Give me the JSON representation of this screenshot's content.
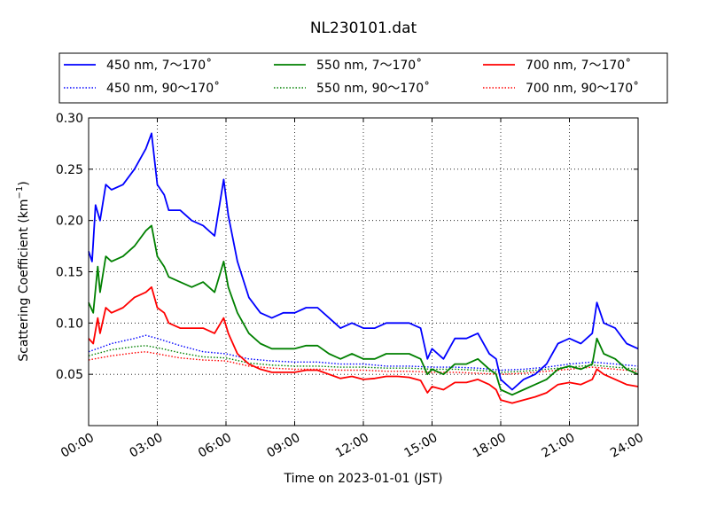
{
  "chart_data": {
    "type": "line",
    "title": "NL230101.dat",
    "xlabel": "Time on 2023-01-01 (JST)",
    "ylabel": "Scattering Coefficient (km",
    "ylabel_sup": "−1",
    "ylabel_close": ")",
    "xlim": [
      "00:00",
      "24:00"
    ],
    "ylim": [
      0.0,
      0.3
    ],
    "xticks": [
      "00:00",
      "03:00",
      "06:00",
      "09:00",
      "12:00",
      "15:00",
      "18:00",
      "21:00",
      "24:00"
    ],
    "yticks": [
      "0.05",
      "0.10",
      "0.15",
      "0.20",
      "0.25",
      "0.30"
    ],
    "grid": true,
    "legend_position": "top",
    "series": [
      {
        "name": "450 nm, 7～170˚",
        "color": "#0000ff",
        "style": "solid",
        "x": [
          0,
          0.15,
          0.3,
          0.5,
          0.75,
          1.0,
          1.5,
          2.0,
          2.5,
          2.75,
          3.0,
          3.3,
          3.5,
          4.0,
          4.5,
          5.0,
          5.5,
          5.9,
          6.1,
          6.5,
          7.0,
          7.5,
          8.0,
          8.5,
          9.0,
          9.5,
          10.0,
          10.5,
          11.0,
          11.5,
          12.0,
          12.5,
          13.0,
          13.5,
          14.0,
          14.5,
          14.8,
          15.0,
          15.5,
          16.0,
          16.5,
          17.0,
          17.5,
          17.8,
          18.0,
          18.5,
          19.0,
          19.5,
          20.0,
          20.5,
          21.0,
          21.5,
          22.0,
          22.2,
          22.5,
          23.0,
          23.5,
          24.0
        ],
        "y": [
          0.17,
          0.16,
          0.215,
          0.2,
          0.235,
          0.23,
          0.235,
          0.25,
          0.27,
          0.285,
          0.235,
          0.225,
          0.21,
          0.21,
          0.2,
          0.195,
          0.185,
          0.24,
          0.205,
          0.16,
          0.125,
          0.11,
          0.105,
          0.11,
          0.11,
          0.115,
          0.115,
          0.105,
          0.095,
          0.1,
          0.095,
          0.095,
          0.1,
          0.1,
          0.1,
          0.095,
          0.065,
          0.075,
          0.065,
          0.085,
          0.085,
          0.09,
          0.07,
          0.065,
          0.045,
          0.035,
          0.045,
          0.05,
          0.06,
          0.08,
          0.085,
          0.08,
          0.09,
          0.12,
          0.1,
          0.095,
          0.08,
          0.075
        ]
      },
      {
        "name": "550 nm, 7～170˚",
        "color": "#008000",
        "style": "solid",
        "x": [
          0,
          0.2,
          0.4,
          0.5,
          0.75,
          1.0,
          1.5,
          2.0,
          2.5,
          2.75,
          3.0,
          3.3,
          3.5,
          4.0,
          4.5,
          5.0,
          5.5,
          5.9,
          6.1,
          6.5,
          7.0,
          7.5,
          8.0,
          8.5,
          9.0,
          9.5,
          10.0,
          10.5,
          11.0,
          11.5,
          12.0,
          12.5,
          13.0,
          13.5,
          14.0,
          14.5,
          14.8,
          15.0,
          15.5,
          16.0,
          16.5,
          17.0,
          17.5,
          17.8,
          18.0,
          18.5,
          19.0,
          19.5,
          20.0,
          20.5,
          21.0,
          21.5,
          22.0,
          22.2,
          22.5,
          23.0,
          23.5,
          24.0
        ],
        "y": [
          0.12,
          0.11,
          0.155,
          0.13,
          0.165,
          0.16,
          0.165,
          0.175,
          0.19,
          0.195,
          0.165,
          0.155,
          0.145,
          0.14,
          0.135,
          0.14,
          0.13,
          0.16,
          0.135,
          0.11,
          0.09,
          0.08,
          0.075,
          0.075,
          0.075,
          0.078,
          0.078,
          0.07,
          0.065,
          0.07,
          0.065,
          0.065,
          0.07,
          0.07,
          0.07,
          0.065,
          0.05,
          0.055,
          0.05,
          0.06,
          0.06,
          0.065,
          0.055,
          0.05,
          0.035,
          0.03,
          0.035,
          0.04,
          0.045,
          0.055,
          0.058,
          0.055,
          0.06,
          0.085,
          0.07,
          0.065,
          0.055,
          0.05
        ]
      },
      {
        "name": "700 nm, 7～170˚",
        "color": "#ff0000",
        "style": "solid",
        "x": [
          0,
          0.2,
          0.4,
          0.5,
          0.75,
          1.0,
          1.5,
          2.0,
          2.5,
          2.75,
          3.0,
          3.3,
          3.5,
          4.0,
          4.5,
          5.0,
          5.5,
          5.9,
          6.1,
          6.5,
          7.0,
          7.5,
          8.0,
          8.5,
          9.0,
          9.5,
          10.0,
          10.5,
          11.0,
          11.5,
          12.0,
          12.5,
          13.0,
          13.5,
          14.0,
          14.5,
          14.8,
          15.0,
          15.5,
          16.0,
          16.5,
          17.0,
          17.5,
          17.8,
          18.0,
          18.5,
          19.0,
          19.5,
          20.0,
          20.5,
          21.0,
          21.5,
          22.0,
          22.2,
          22.5,
          23.0,
          23.5,
          24.0
        ],
        "y": [
          0.085,
          0.08,
          0.105,
          0.09,
          0.115,
          0.11,
          0.115,
          0.125,
          0.13,
          0.135,
          0.115,
          0.11,
          0.1,
          0.095,
          0.095,
          0.095,
          0.09,
          0.105,
          0.09,
          0.07,
          0.06,
          0.055,
          0.052,
          0.052,
          0.052,
          0.054,
          0.054,
          0.05,
          0.046,
          0.048,
          0.045,
          0.046,
          0.048,
          0.048,
          0.047,
          0.044,
          0.032,
          0.038,
          0.035,
          0.042,
          0.042,
          0.045,
          0.04,
          0.035,
          0.025,
          0.022,
          0.025,
          0.028,
          0.032,
          0.04,
          0.042,
          0.04,
          0.045,
          0.055,
          0.05,
          0.045,
          0.04,
          0.038
        ]
      },
      {
        "name": "450 nm, 90～170˚",
        "color": "#0000ff",
        "style": "dotted",
        "x": [
          0,
          1,
          2,
          2.5,
          3,
          4,
          5,
          6,
          7,
          8,
          9,
          10,
          11,
          12,
          13,
          14,
          15,
          16,
          17,
          18,
          19,
          20,
          21,
          22,
          23,
          24
        ],
        "y": [
          0.072,
          0.08,
          0.085,
          0.088,
          0.085,
          0.078,
          0.072,
          0.07,
          0.065,
          0.063,
          0.062,
          0.062,
          0.06,
          0.06,
          0.058,
          0.058,
          0.057,
          0.057,
          0.056,
          0.054,
          0.055,
          0.057,
          0.06,
          0.062,
          0.06,
          0.058
        ]
      },
      {
        "name": "550 nm, 90～170˚",
        "color": "#008000",
        "style": "dotted",
        "x": [
          0,
          1,
          2,
          2.5,
          3,
          4,
          5,
          6,
          7,
          8,
          9,
          10,
          11,
          12,
          13,
          14,
          15,
          16,
          17,
          18,
          19,
          20,
          21,
          22,
          23,
          24
        ],
        "y": [
          0.068,
          0.074,
          0.077,
          0.078,
          0.076,
          0.071,
          0.067,
          0.066,
          0.061,
          0.059,
          0.058,
          0.058,
          0.057,
          0.057,
          0.056,
          0.056,
          0.055,
          0.055,
          0.054,
          0.052,
          0.053,
          0.055,
          0.057,
          0.059,
          0.057,
          0.055
        ]
      },
      {
        "name": "700 nm, 90～170˚",
        "color": "#ff0000",
        "style": "dotted",
        "x": [
          0,
          1,
          2,
          2.5,
          3,
          4,
          5,
          6,
          7,
          8,
          9,
          10,
          11,
          12,
          13,
          14,
          15,
          16,
          17,
          18,
          19,
          20,
          21,
          22,
          23,
          24
        ],
        "y": [
          0.064,
          0.068,
          0.071,
          0.072,
          0.07,
          0.066,
          0.064,
          0.063,
          0.058,
          0.056,
          0.055,
          0.055,
          0.054,
          0.054,
          0.053,
          0.053,
          0.052,
          0.052,
          0.051,
          0.05,
          0.051,
          0.053,
          0.055,
          0.057,
          0.055,
          0.053
        ]
      }
    ]
  }
}
